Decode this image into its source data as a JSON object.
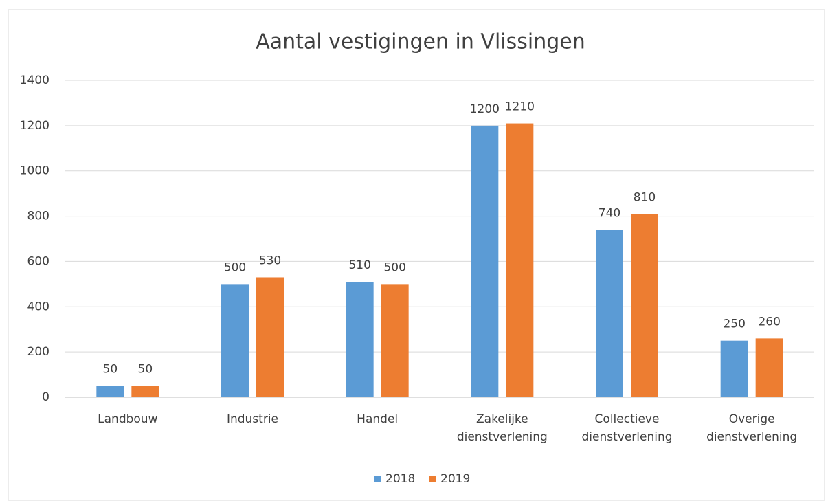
{
  "chart_data": {
    "type": "bar",
    "title": "Aantal vestigingen in Vlissingen",
    "categories": [
      "Landbouw",
      "Industrie",
      "Handel",
      "Zakelijke dienstverlening",
      "Collectieve dienstverlening",
      "Overige dienstverlening"
    ],
    "series": [
      {
        "name": "2018",
        "color": "#5b9bd5",
        "values": [
          50,
          500,
          510,
          1200,
          740,
          250
        ]
      },
      {
        "name": "2019",
        "color": "#ed7d31",
        "values": [
          50,
          530,
          500,
          1210,
          810,
          260
        ]
      }
    ],
    "ylim": [
      0,
      1400
    ],
    "yticks": [
      0,
      200,
      400,
      600,
      800,
      1000,
      1200,
      1400
    ],
    "grid": true,
    "legend": "bottom"
  }
}
